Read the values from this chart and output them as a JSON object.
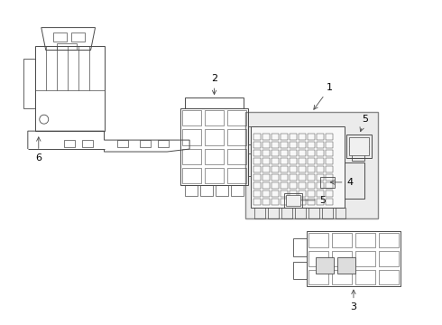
{
  "bg_color": "#ffffff",
  "line_color": "#4a4a4a",
  "label_color": "#000000",
  "box_fill": "#efefef",
  "label_fontsize": 8,
  "fig_width": 4.9,
  "fig_height": 3.6,
  "dpi": 100
}
